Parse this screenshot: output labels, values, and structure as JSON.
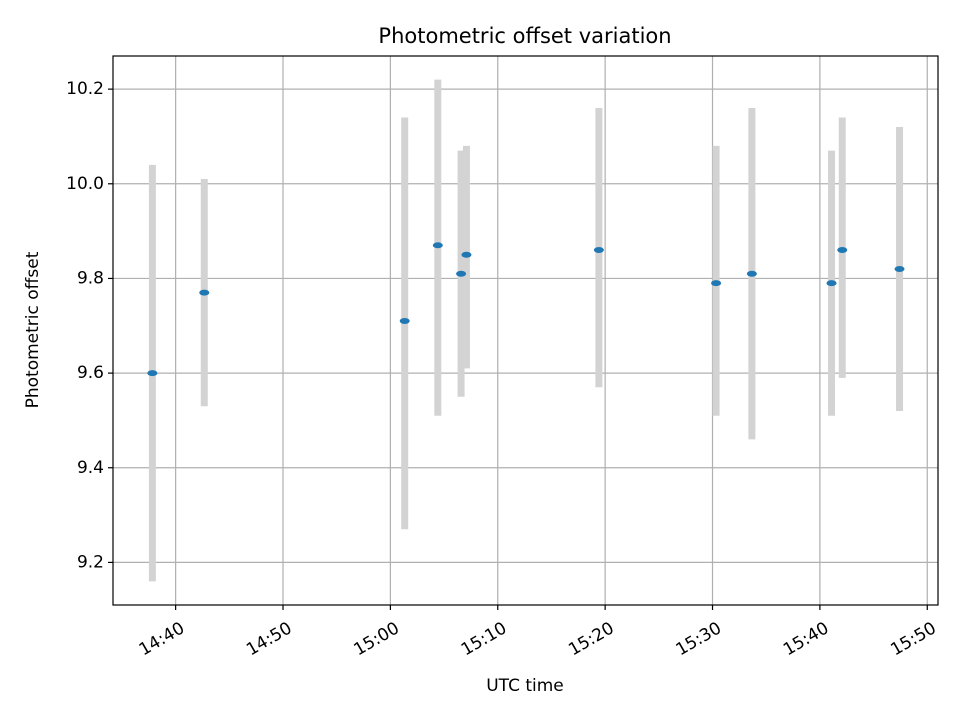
{
  "chart_data": {
    "type": "scatter",
    "title": "Photometric offset variation",
    "xlabel": "UTC time",
    "ylabel": "Photometric offset",
    "x_ticks": [
      "14:40",
      "14:50",
      "15:00",
      "15:10",
      "15:20",
      "15:30",
      "15:40",
      "15:50"
    ],
    "y_ticks": [
      "9.2",
      "9.4",
      "9.6",
      "9.8",
      "10.0",
      "10.2"
    ],
    "xlim": [
      "14:34:10",
      "15:51:00"
    ],
    "ylim": [
      9.11,
      10.27
    ],
    "grid": true,
    "colors": {
      "point": "#1f77b4",
      "errorbar": "#d3d3d3",
      "grid": "#b0b0b0"
    },
    "series": [
      {
        "points": [
          {
            "x": "14:37:50",
            "y": 9.6,
            "ylow": 9.16,
            "yhigh": 10.04
          },
          {
            "x": "14:42:40",
            "y": 9.77,
            "ylow": 9.53,
            "yhigh": 10.01
          },
          {
            "x": "15:01:20",
            "y": 9.71,
            "ylow": 9.27,
            "yhigh": 10.14
          },
          {
            "x": "15:04:25",
            "y": 9.87,
            "ylow": 9.51,
            "yhigh": 10.22
          },
          {
            "x": "15:06:35",
            "y": 9.81,
            "ylow": 9.55,
            "yhigh": 10.07
          },
          {
            "x": "15:07:05",
            "y": 9.85,
            "ylow": 9.61,
            "yhigh": 10.08
          },
          {
            "x": "15:19:25",
            "y": 9.86,
            "ylow": 9.57,
            "yhigh": 10.16
          },
          {
            "x": "15:30:20",
            "y": 9.79,
            "ylow": 9.51,
            "yhigh": 10.08
          },
          {
            "x": "15:33:40",
            "y": 9.81,
            "ylow": 9.46,
            "yhigh": 10.16
          },
          {
            "x": "15:41:05",
            "y": 9.79,
            "ylow": 9.51,
            "yhigh": 10.07
          },
          {
            "x": "15:42:05",
            "y": 9.86,
            "ylow": 9.59,
            "yhigh": 10.14
          },
          {
            "x": "15:47:25",
            "y": 9.82,
            "ylow": 9.52,
            "yhigh": 10.12
          }
        ]
      }
    ]
  }
}
